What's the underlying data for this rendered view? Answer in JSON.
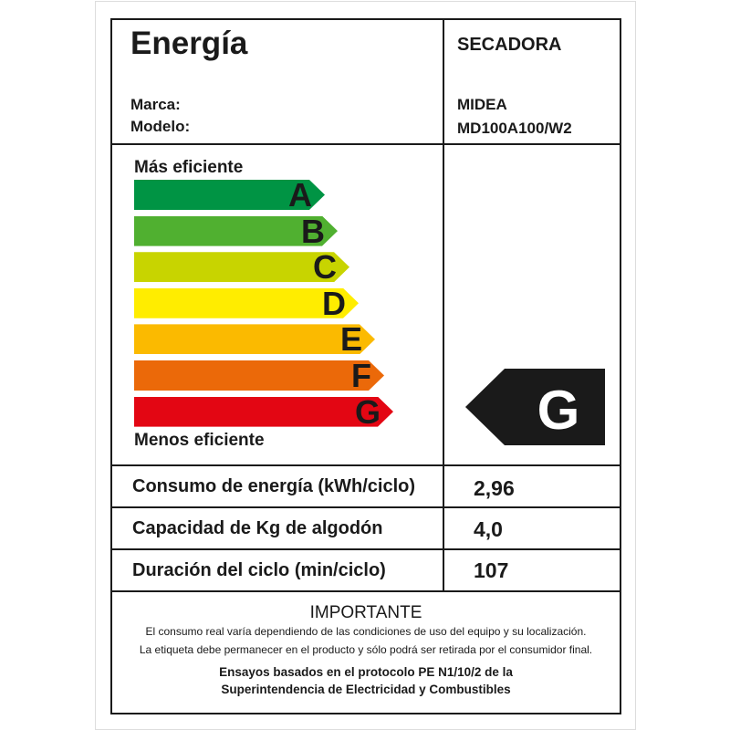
{
  "header": {
    "title": "Energía",
    "appliance": "SECADORA",
    "brand_label": "Marca:",
    "model_label": "Modelo:",
    "brand": "MIDEA",
    "model": "MD100A100/W2"
  },
  "scale": {
    "top_label": "Más eficiente",
    "bottom_label": "Menos eficiente",
    "classes": [
      {
        "letter": "A",
        "color": "#009444"
      },
      {
        "letter": "B",
        "color": "#50b030"
      },
      {
        "letter": "C",
        "color": "#c8d400"
      },
      {
        "letter": "D",
        "color": "#ffed00"
      },
      {
        "letter": "E",
        "color": "#fbba00"
      },
      {
        "letter": "F",
        "color": "#eb6909"
      },
      {
        "letter": "G",
        "color": "#e30613"
      }
    ],
    "rating": "G"
  },
  "specs": [
    {
      "label": "Consumo de energía (kWh/ciclo)",
      "value": "2,96"
    },
    {
      "label": "Capacidad de Kg de algodón",
      "value": "4,0"
    },
    {
      "label": "Duración del ciclo (min/ciclo)",
      "value": "107"
    }
  ],
  "footer": {
    "title": "IMPORTANTE",
    "line1": "El consumo real varía dependiendo de las condiciones de uso del equipo y su localización.",
    "line2": "La etiqueta debe permanecer en el  producto y sólo podrá ser retirada por el consumidor final.",
    "line3": "Ensayos basados en el protocolo PE N1/10/2 de la",
    "line4": "Superintendencia de Electricidad y Combustibles"
  }
}
